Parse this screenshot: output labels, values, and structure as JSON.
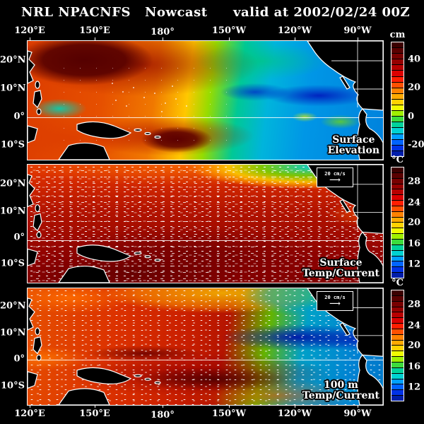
{
  "header": {
    "agency": "NRL NPACNFS",
    "product": "Nowcast",
    "valid": "valid at 2002/02/24 00Z"
  },
  "axes": {
    "lon_labels": [
      "120°E",
      "150°E",
      "180°",
      "150°W",
      "120°W",
      "90°W"
    ],
    "lat_labels": [
      "20°N",
      "10°N",
      "0°",
      "10°S"
    ]
  },
  "panels": [
    {
      "id": "surface-elevation",
      "label_line1": "Surface",
      "label_line2": "Elevation",
      "ref_vector": ""
    },
    {
      "id": "surface-temp-current",
      "label_line1": "Surface",
      "label_line2": "Temp/Current",
      "ref_vector": "20 cm/s"
    },
    {
      "id": "100m-temp-current",
      "label_line1": "100 m",
      "label_line2": "Temp/Current",
      "ref_vector": "20 cm/s"
    }
  ],
  "colorbars": [
    {
      "unit": "cm",
      "ticks": [
        "40",
        "20",
        "0",
        "-20"
      ],
      "colors": [
        "#3c0000",
        "#5a0000",
        "#780000",
        "#960000",
        "#b80000",
        "#dc0000",
        "#ff1e00",
        "#ff5000",
        "#ff8200",
        "#ffaa00",
        "#ffd200",
        "#f0fa00",
        "#a0f000",
        "#3cdc3c",
        "#00d29b",
        "#00d2d2",
        "#00a0ff",
        "#0064ff",
        "#0032e6",
        "#001eaa"
      ]
    },
    {
      "unit": "°C",
      "ticks": [
        "28",
        "24",
        "20",
        "16",
        "12"
      ],
      "colors": [
        "#3c0000",
        "#5a0000",
        "#780000",
        "#960000",
        "#b80000",
        "#dc0000",
        "#ff1e00",
        "#ff5000",
        "#ff8200",
        "#ffaa00",
        "#ffd200",
        "#f0fa00",
        "#a0f000",
        "#3cdc3c",
        "#00d29b",
        "#00d2d2",
        "#00a0ff",
        "#0064ff",
        "#0032e6",
        "#001eaa"
      ]
    },
    {
      "unit": "°C",
      "ticks": [
        "28",
        "24",
        "20",
        "16",
        "12"
      ],
      "colors": [
        "#3c0000",
        "#5a0000",
        "#780000",
        "#960000",
        "#b80000",
        "#dc0000",
        "#ff1e00",
        "#ff5000",
        "#ff8200",
        "#ffaa00",
        "#ffd200",
        "#f0fa00",
        "#a0f000",
        "#3cdc3c",
        "#00d29b",
        "#00d2d2",
        "#00a0ff",
        "#0064ff",
        "#0032e6",
        "#001eaa"
      ]
    }
  ],
  "chart_data": [
    {
      "type": "heatmap",
      "title": "Surface Elevation",
      "units": "cm",
      "x_range": [
        "120°E",
        "90°W"
      ],
      "y_range": [
        "15°S",
        "25°N"
      ],
      "x_ticks": [
        "120°E",
        "150°E",
        "180°",
        "150°W",
        "120°W",
        "90°W"
      ],
      "y_ticks": [
        "20°N",
        "10°N",
        "0°",
        "10°S"
      ],
      "colorbar_ticks": [
        40,
        20,
        0,
        -20
      ],
      "colorbar_range": [
        -35,
        55
      ],
      "legend_position": "right",
      "grid": false,
      "features": [
        "high sea-surface height 40-55 cm (dark red/maroon) over western tropical Pacific near 10-20N and a second maximum near 5-15S in the southwest",
        "low sea-surface height -20 to -35 cm (dark blue) band along 5-10N in the eastern Pacific extending to the American coast",
        "near-zero elevation (green/yellow) transition zone through the central Pacific",
        "cyan/blue low region over the whole eastern basin",
        "thin white line marking the equator",
        "black land (Asia, New Guinea, Australia, North and South America) outlined in white with white lat/lon grid over North America"
      ]
    },
    {
      "type": "heatmap",
      "title": "Surface Temp/Current",
      "units": "°C",
      "x_range": [
        "120°E",
        "90°W"
      ],
      "y_range": [
        "15°S",
        "25°N"
      ],
      "x_ticks": [
        "120°E",
        "150°E",
        "180°",
        "150°W",
        "120°W",
        "90°W"
      ],
      "y_ticks": [
        "20°N",
        "10°N",
        "0°",
        "10°S"
      ],
      "colorbar_ticks": [
        28,
        24,
        20,
        16,
        12
      ],
      "colorbar_range": [
        10,
        30
      ],
      "reference_vector": "20 cm/s",
      "legend_position": "right",
      "grid": false,
      "features": [
        "warm pool at or above 28C (dark red) covering most of the tropical Pacific, warmest south of the equator",
        "cooler 14-22C water (orange to yellow to green to cyan) in the northeast Pacific along the top-right of the panel",
        "dense white surface-current vectors showing zonal equatorial jets and mesoscale eddies",
        "reference current vector box of 20 cm/s at upper right"
      ]
    },
    {
      "type": "heatmap",
      "title": "100 m Temp/Current",
      "units": "°C",
      "x_range": [
        "120°E",
        "90°W"
      ],
      "y_range": [
        "15°S",
        "25°N"
      ],
      "x_ticks": [
        "120°E",
        "150°E",
        "180°",
        "150°W",
        "120°W",
        "90°W"
      ],
      "y_ticks": [
        "20°N",
        "10°N",
        "0°",
        "10°S"
      ],
      "colorbar_ticks": [
        28,
        24,
        20,
        16,
        12
      ],
      "colorbar_range": [
        10,
        30
      ],
      "reference_vector": "20 cm/s",
      "legend_position": "right",
      "grid": false,
      "features": [
        "warmest subsurface water above 28C (dark maroon) in the west-central tropical Pacific south of the equator",
        "cold 10-14C (dark blue) band along 8-12N in the eastern Pacific reaching the Central American coast",
        "orange/yellow/green transition across the northern subtropics and cyan-blue southeastern basin",
        "white current vectors at 100 m depth",
        "reference current vector box of 20 cm/s at upper right"
      ]
    }
  ]
}
